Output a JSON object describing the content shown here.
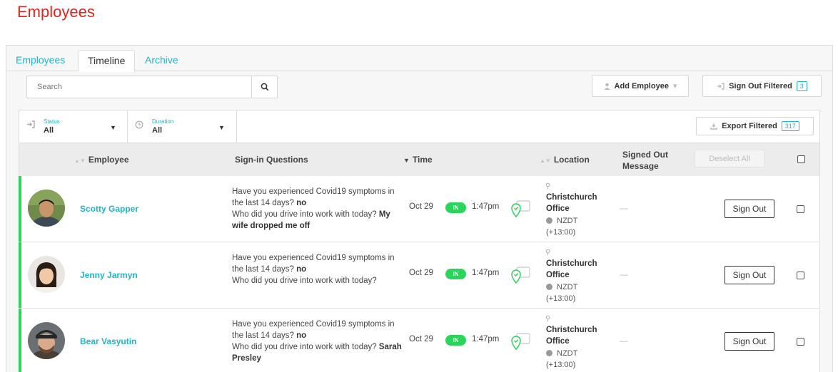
{
  "page": {
    "title": "Employees"
  },
  "tabs": [
    {
      "label": "Employees",
      "active": false
    },
    {
      "label": "Timeline",
      "active": true
    },
    {
      "label": "Archive",
      "active": false
    }
  ],
  "toolbar": {
    "search_placeholder": "Search",
    "add_employee_label": "Add Employee",
    "sign_out_filtered_label": "Sign Out Filtered",
    "sign_out_filtered_count": "3",
    "export_filtered_label": "Export Filtered",
    "export_filtered_count": "317"
  },
  "filters": {
    "status": {
      "label": "Status",
      "value": "All"
    },
    "duration": {
      "label": "Duration",
      "value": "All"
    }
  },
  "columns": {
    "employee": "Employee",
    "questions": "Sign-in Questions",
    "time": "Time",
    "location": "Location",
    "message_line1": "Signed Out",
    "message_line2": "Message",
    "deselect_all": "Deselect All"
  },
  "rows": [
    {
      "name": "Scotty Gapper",
      "q1": "Have you experienced Covid19 symptoms in the last 14 days?",
      "a1": "no",
      "q2": "Who did you drive into work with today?",
      "a2": "My wife dropped me off",
      "date": "Oct 29",
      "status": "IN",
      "time": "1:47pm",
      "location_line1": "Christchurch",
      "location_line2": "Office",
      "tz_line1": "NZDT",
      "tz_line2": "(+13:00)",
      "message": "—",
      "action": "Sign Out"
    },
    {
      "name": "Jenny Jarmyn",
      "q1": "Have you experienced Covid19 symptoms in the last 14 days?",
      "a1": "no",
      "q2": "Who did you drive into work with today?",
      "a2": "",
      "date": "Oct 29",
      "status": "IN",
      "time": "1:47pm",
      "location_line1": "Christchurch",
      "location_line2": "Office",
      "tz_line1": "NZDT",
      "tz_line2": "(+13:00)",
      "message": "—",
      "action": "Sign Out"
    },
    {
      "name": "Bear Vasyutin",
      "q1": "Have you experienced Covid19 symptoms in the last 14 days?",
      "a1": "no",
      "q2": "Who did you drive into work with today?",
      "a2": "Sarah Presley",
      "date": "Oct 29",
      "status": "IN",
      "time": "1:47pm",
      "location_line1": "Christchurch",
      "location_line2": "Office",
      "tz_line1": "NZDT",
      "tz_line2": "(+13:00)",
      "message": "—",
      "action": "Sign Out"
    }
  ],
  "colors": {
    "accent": "#1fb6c8",
    "title_red": "#e5231b",
    "status_green": "#2bd45b"
  }
}
